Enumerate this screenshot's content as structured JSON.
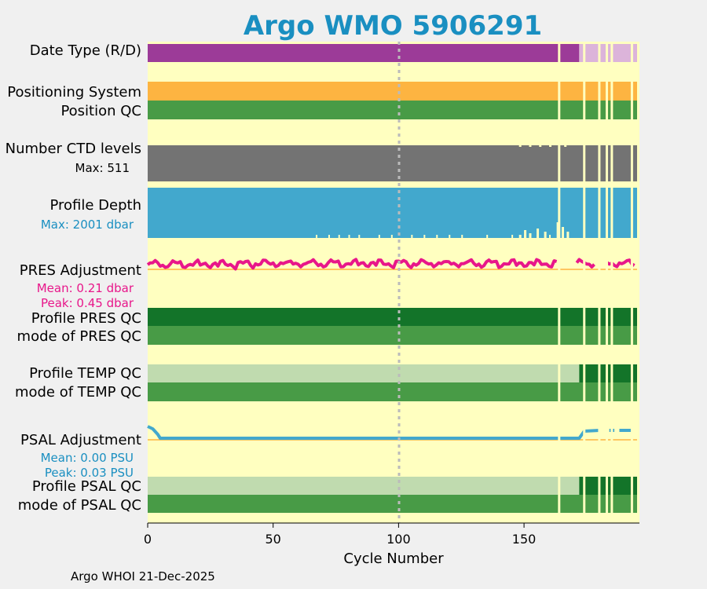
{
  "chart_data": {
    "type": "bar",
    "title": "Argo WMO 5906291",
    "xlabel": "Cycle Number",
    "ylabel": "",
    "xlim": [
      0,
      196
    ],
    "xticks": [
      0,
      50,
      100,
      150
    ],
    "footer": "Argo WHOI 21-Dec-2025",
    "rows": {
      "date_type": {
        "label": "Date Type (R/D)",
        "segments": [
          [
            0,
            172,
            "D"
          ],
          [
            172,
            196,
            "R"
          ]
        ]
      },
      "positioning_system": {
        "label": "Positioning System"
      },
      "position_qc": {
        "label": "Position QC"
      },
      "ctd_levels": {
        "label": "Number CTD levels",
        "max_label": "Max: 511",
        "max": 511
      },
      "profile_depth": {
        "label": "Profile Depth",
        "max_label": "Max: 2001 dbar",
        "max": 2001
      },
      "pres_adjustment": {
        "label": "PRES Adjustment",
        "mean_label": "Mean: 0.21 dbar",
        "peak_label": "Peak: 0.45 dbar",
        "mean": 0.21,
        "peak": 0.45
      },
      "profile_pres_qc": {
        "label": "Profile PRES QC"
      },
      "mode_pres_qc": {
        "label": "mode of PRES QC"
      },
      "profile_temp_qc": {
        "label": "Profile TEMP QC",
        "segments": [
          [
            0,
            172,
            "B"
          ],
          [
            172,
            196,
            "A"
          ]
        ]
      },
      "mode_temp_qc": {
        "label": "mode of TEMP QC"
      },
      "psal_adjustment": {
        "label": "PSAL Adjustment",
        "mean_label": "Mean: 0.00 PSU",
        "peak_label": "Peak: 0.03 PSU",
        "mean": 0.0,
        "peak": 0.03
      },
      "profile_psal_qc": {
        "label": "Profile PSAL QC",
        "segments": [
          [
            0,
            172,
            "B"
          ],
          [
            172,
            196,
            "A"
          ]
        ]
      },
      "mode_psal_qc": {
        "label": "mode of PSAL QC"
      }
    },
    "missing_cycles": [
      164,
      174,
      180,
      183,
      185,
      193
    ],
    "colors": {
      "background": "#ffffc0",
      "title": "#1a8fc1",
      "date_d": "#9c3b98",
      "date_r": "#dcb4da",
      "positioning": "#fdb441",
      "qc_good": "#489b46",
      "qc_dark": "#137429",
      "qc_light": "#c0dbaf",
      "ctd": "#737373",
      "depth": "#42a8cd",
      "depth_label": "#1a8fc1",
      "pres": "#e8168a",
      "psal": "#42a8cd",
      "psal_label": "#1a8fc1",
      "zero_line": "#fdb441"
    }
  }
}
